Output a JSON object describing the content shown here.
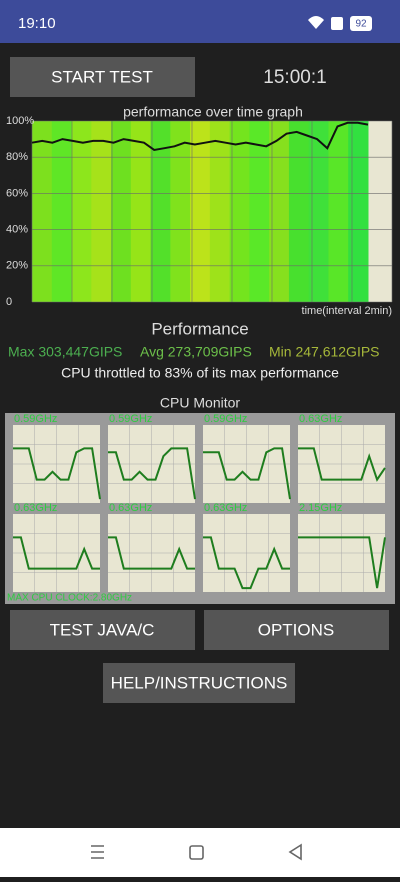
{
  "status_bar": {
    "time": "19:10",
    "battery": "92"
  },
  "start_button": "START TEST",
  "timer": "15:00:1",
  "graph": {
    "type": "line",
    "title": "performance over time graph",
    "yticks": [
      {
        "value": 100,
        "label": "100%"
      },
      {
        "value": 80,
        "label": "80%"
      },
      {
        "value": 60,
        "label": "60%"
      },
      {
        "value": 40,
        "label": "40%"
      },
      {
        "value": 20,
        "label": "20%"
      },
      0
    ],
    "ylim": [
      0,
      100
    ],
    "x_label": "time(interval 2min)",
    "color": "#111111",
    "values": [
      88,
      89,
      88,
      90,
      89,
      88,
      89,
      89,
      88,
      90,
      89,
      88,
      84,
      85,
      86,
      88,
      87,
      88,
      89,
      88,
      87,
      88,
      87,
      86,
      89,
      93,
      94,
      92,
      90,
      85,
      97,
      99,
      99,
      98
    ]
  },
  "performance": {
    "heading": "Performance",
    "max": "Max 303,447GIPS",
    "avg": "Avg 273,709GIPS",
    "min": "Min 247,612GIPS",
    "throttle": "CPU throttled to 83% of its max performance"
  },
  "cpu_monitor": {
    "title": "CPU Monitor",
    "color": "#1e7d1e",
    "cores": [
      {
        "freq": "0.59GHz",
        "values": [
          70,
          70,
          70,
          30,
          30,
          40,
          30,
          30,
          65,
          70,
          70,
          5
        ]
      },
      {
        "freq": "0.59GHz",
        "values": [
          65,
          65,
          30,
          30,
          40,
          30,
          30,
          60,
          70,
          70,
          70,
          5
        ]
      },
      {
        "freq": "0.59GHz",
        "values": [
          65,
          65,
          65,
          30,
          30,
          40,
          30,
          30,
          65,
          70,
          70,
          5
        ]
      },
      {
        "freq": "0.63GHz",
        "values": [
          70,
          70,
          70,
          30,
          30,
          30,
          30,
          30,
          30,
          60,
          30,
          45
        ]
      },
      {
        "freq": "0.63GHz",
        "values": [
          70,
          70,
          30,
          30,
          30,
          30,
          30,
          30,
          30,
          55,
          30,
          30
        ]
      },
      {
        "freq": "0.63GHz",
        "values": [
          70,
          70,
          30,
          30,
          30,
          30,
          30,
          30,
          30,
          55,
          30,
          30
        ]
      },
      {
        "freq": "0.63GHz",
        "values": [
          70,
          70,
          30,
          30,
          30,
          5,
          5,
          30,
          30,
          55,
          30,
          30
        ]
      },
      {
        "freq": "2.15GHz",
        "values": [
          70,
          70,
          70,
          70,
          70,
          70,
          70,
          70,
          70,
          70,
          5,
          70
        ]
      }
    ],
    "max_clock": "MAX CPU CLOCK:2.80GHz"
  },
  "buttons": {
    "test": "TEST JAVA/C",
    "options": "OPTIONS",
    "help": "HELP/INSTRUCTIONS"
  }
}
